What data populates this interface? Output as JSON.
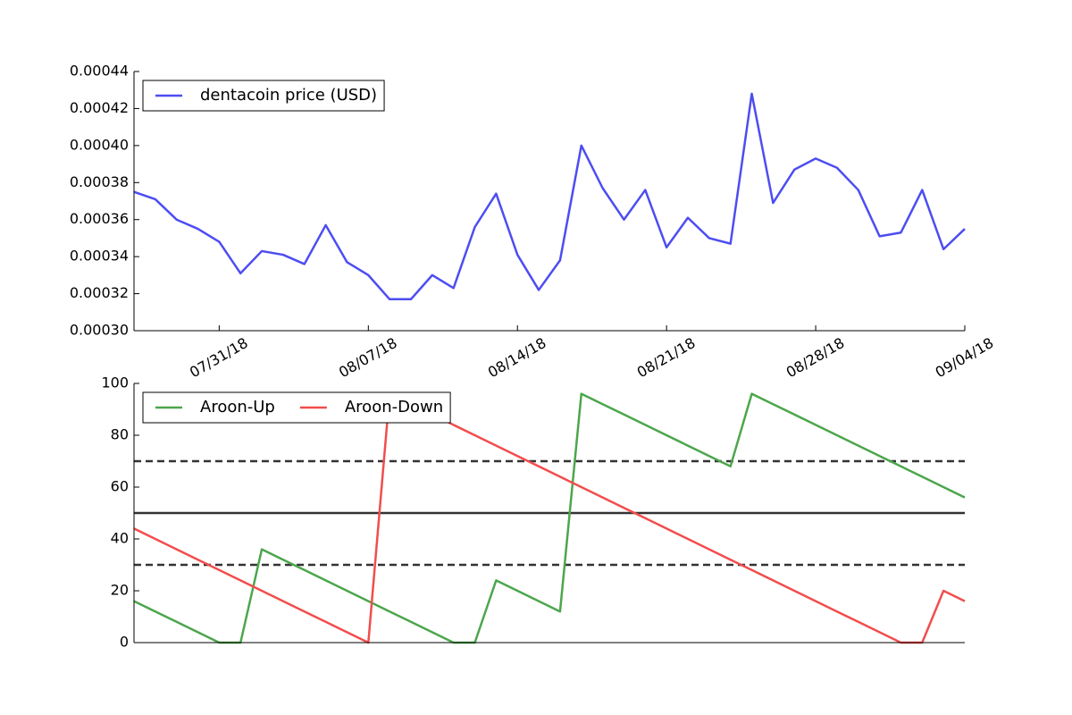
{
  "chart_data": [
    {
      "type": "line",
      "x": [
        "07/27/18",
        "07/28/18",
        "07/29/18",
        "07/30/18",
        "07/31/18",
        "08/01/18",
        "08/02/18",
        "08/03/18",
        "08/04/18",
        "08/05/18",
        "08/06/18",
        "08/07/18",
        "08/08/18",
        "08/09/18",
        "08/10/18",
        "08/11/18",
        "08/12/18",
        "08/13/18",
        "08/14/18",
        "08/15/18",
        "08/16/18",
        "08/17/18",
        "08/18/18",
        "08/19/18",
        "08/20/18",
        "08/21/18",
        "08/22/18",
        "08/23/18",
        "08/24/18",
        "08/25/18",
        "08/26/18",
        "08/27/18",
        "08/28/18",
        "08/29/18",
        "08/30/18",
        "08/31/18",
        "09/01/18",
        "09/02/18",
        "09/03/18",
        "09/04/18"
      ],
      "series": [
        {
          "name": "dentacoin price (USD)",
          "color": "#4d4df2",
          "values": [
            0.000375,
            0.000371,
            0.00036,
            0.000355,
            0.000348,
            0.000331,
            0.000343,
            0.000341,
            0.000336,
            0.000357,
            0.000337,
            0.00033,
            0.000317,
            0.000317,
            0.00033,
            0.000323,
            0.000356,
            0.000374,
            0.000341,
            0.000322,
            0.000338,
            0.0004,
            0.000377,
            0.00036,
            0.000376,
            0.000345,
            0.000361,
            0.00035,
            0.000347,
            0.000428,
            0.000369,
            0.000387,
            0.000393,
            0.000388,
            0.000376,
            0.000351,
            0.000353,
            0.000376,
            0.000344,
            0.000355
          ]
        }
      ],
      "xlim": [
        "07/27/18",
        "09/04/18"
      ],
      "xticks": [
        "07/31/18",
        "08/07/18",
        "08/14/18",
        "08/21/18",
        "08/28/18",
        "09/04/18"
      ],
      "ylim": [
        0.0003,
        0.00044
      ],
      "yticks": [
        {
          "value": 0.0003,
          "label": "0.00030"
        },
        0.00032,
        0.00034,
        0.00036,
        0.00038,
        {
          "value": 0.0004,
          "label": "0.00040"
        },
        0.00042,
        0.00044
      ],
      "legend": "upper left"
    },
    {
      "type": "line",
      "x": [
        "07/27/18",
        "07/28/18",
        "07/29/18",
        "07/30/18",
        "07/31/18",
        "08/01/18",
        "08/02/18",
        "08/03/18",
        "08/04/18",
        "08/05/18",
        "08/06/18",
        "08/07/18",
        "08/08/18",
        "08/09/18",
        "08/10/18",
        "08/11/18",
        "08/12/18",
        "08/13/18",
        "08/14/18",
        "08/15/18",
        "08/16/18",
        "08/17/18",
        "08/18/18",
        "08/19/18",
        "08/20/18",
        "08/21/18",
        "08/22/18",
        "08/23/18",
        "08/24/18",
        "08/25/18",
        "08/26/18",
        "08/27/18",
        "08/28/18",
        "08/29/18",
        "08/30/18",
        "08/31/18",
        "09/01/18",
        "09/02/18",
        "09/03/18",
        "09/04/18"
      ],
      "series": [
        {
          "name": "Aroon-Up",
          "color": "#4ca64c",
          "values": [
            16,
            12,
            8,
            4,
            0,
            0,
            36,
            32,
            28,
            24,
            20,
            16,
            12,
            8,
            4,
            0,
            0,
            24,
            20,
            16,
            12,
            96,
            92,
            88,
            84,
            80,
            76,
            72,
            68,
            96,
            92,
            88,
            84,
            80,
            76,
            72,
            68,
            64,
            60,
            56
          ]
        },
        {
          "name": "Aroon-Down",
          "color": "#f24d4d",
          "values": [
            44,
            40,
            36,
            32,
            28,
            24,
            20,
            16,
            12,
            8,
            4,
            0,
            96,
            92,
            88,
            84,
            80,
            76,
            72,
            68,
            64,
            60,
            56,
            52,
            48,
            44,
            40,
            36,
            32,
            28,
            24,
            20,
            16,
            12,
            8,
            4,
            0,
            0,
            20,
            16
          ]
        }
      ],
      "xlim": [
        "07/27/18",
        "09/04/18"
      ],
      "ylim": [
        0,
        100
      ],
      "yticks": [
        0,
        20,
        40,
        60,
        80,
        100
      ],
      "hlines": [
        {
          "value": 30,
          "dashed": true
        },
        {
          "value": 50,
          "dashed": false
        },
        {
          "value": 70,
          "dashed": true
        }
      ],
      "hline_color": "#333333",
      "legend": "upper left",
      "legend_columns": 2
    }
  ]
}
